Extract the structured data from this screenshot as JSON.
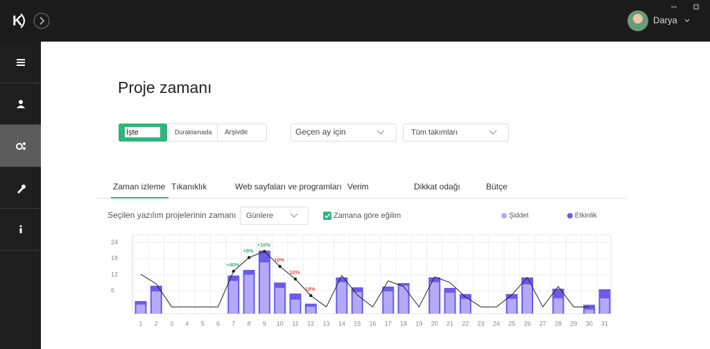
{
  "header": {
    "user": "Darya"
  },
  "title": "Proje zamanı",
  "status_tabs": [
    "İşte",
    "Duraklamada",
    "Arşivde"
  ],
  "period": "Geçen ay için",
  "teams": "Tüm takımları",
  "tabs": [
    "Zaman izleme",
    "Tıkanıklık",
    "Web sayfaları ve programları",
    "Verim",
    "Dikkat odağı",
    "Bütçe"
  ],
  "controls": {
    "label": "Seçilen yazılım projelerinin zamanı",
    "granularity": "Günlere",
    "trend_toggle": "Zamana göre eğilim"
  },
  "chart_data": {
    "type": "bar",
    "categories": [
      1,
      2,
      3,
      4,
      5,
      6,
      7,
      8,
      9,
      10,
      11,
      12,
      13,
      14,
      15,
      16,
      17,
      18,
      19,
      20,
      21,
      22,
      23,
      24,
      25,
      26,
      27,
      28,
      29,
      30,
      31
    ],
    "series": [
      {
        "name": "Etkinlik",
        "color": "#6b5be6",
        "values": [
          2.2,
          7.9,
          null,
          null,
          null,
          null,
          11.7,
          13.8,
          21.0,
          9.1,
          5.0,
          1.2,
          null,
          11.0,
          7.3,
          null,
          7.6,
          8.9,
          null,
          11.0,
          7.1,
          4.8,
          null,
          null,
          4.8,
          11.0,
          null,
          6.8,
          null,
          0.8,
          6.6
        ]
      },
      {
        "name": "Şiddet",
        "color": "#b4a9f6",
        "values": [
          0.9,
          5.8,
          null,
          null,
          null,
          null,
          9.7,
          12.0,
          16.6,
          7.1,
          2.7,
          0.1,
          null,
          9.2,
          5.5,
          null,
          5.8,
          7.9,
          null,
          9.2,
          5.3,
          3.0,
          null,
          null,
          3.0,
          8.4,
          null,
          3.2,
          null,
          -1.0,
          3.2
        ]
      }
    ],
    "trend": {
      "color": "#222222",
      "values": [
        12.2,
        8.6,
        0,
        0,
        0,
        0,
        13.3,
        18.4,
        20.7,
        15.1,
        10.4,
        4.2,
        0,
        11.7,
        4.5,
        0,
        9.7,
        7.6,
        0,
        11.2,
        9.1,
        3.7,
        0,
        0,
        4.5,
        11.0,
        0,
        7.6,
        0,
        0,
        null
      ],
      "annotations": [
        {
          "x": 7,
          "label": "+40%",
          "color": "#3cb371"
        },
        {
          "x": 8,
          "label": "+8%",
          "color": "#3cb371"
        },
        {
          "x": 9,
          "label": "+10%",
          "color": "#3cb371"
        },
        {
          "x": 10,
          "label": "10%",
          "color": "#e05050"
        },
        {
          "x": 11,
          "label": "10%",
          "color": "#e05050"
        },
        {
          "x": 12,
          "label": "18%",
          "color": "#e05050"
        }
      ]
    },
    "ylim": [
      -2.5,
      27
    ],
    "yticks": [
      6,
      12,
      18,
      24
    ],
    "grid": true,
    "legend": "top-right"
  }
}
